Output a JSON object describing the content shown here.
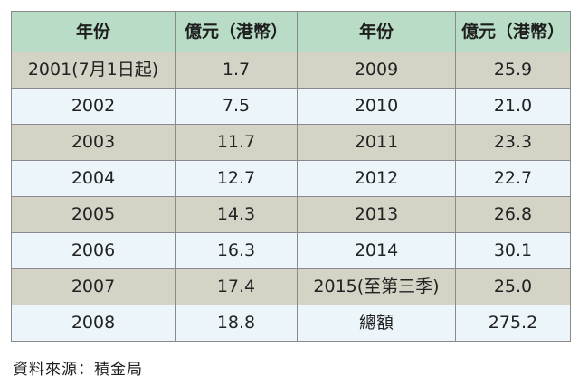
{
  "table": {
    "headers": [
      "年份",
      "億元（港幣）",
      "年份",
      "億元（港幣）"
    ],
    "rows": [
      [
        "2001(7月1日起)",
        "1.7",
        "2009",
        "25.9"
      ],
      [
        "2002",
        "7.5",
        "2010",
        "21.0"
      ],
      [
        "2003",
        "11.7",
        "2011",
        "23.3"
      ],
      [
        "2004",
        "12.7",
        "2012",
        "22.7"
      ],
      [
        "2005",
        "14.3",
        "2013",
        "26.8"
      ],
      [
        "2006",
        "16.3",
        "2014",
        "30.1"
      ],
      [
        "2007",
        "17.4",
        "2015(至第三季)",
        "25.0"
      ],
      [
        "2008",
        "18.8",
        "總額",
        "275.2"
      ]
    ]
  },
  "source": "資料來源：積金局",
  "colors": {
    "header_bg": "#b8dcc6",
    "row_odd_bg": "#d4d3c5",
    "row_even_bg": "#ecf6fa",
    "border": "#8a8a8a"
  }
}
